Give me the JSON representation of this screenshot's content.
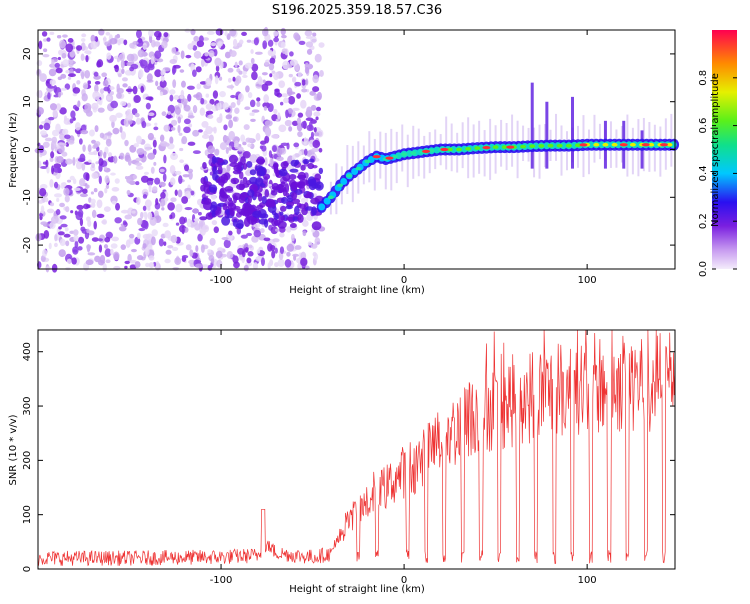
{
  "title": "S196.2025.359.18.57.C36",
  "chart_data": [
    {
      "type": "heatmap",
      "title": "S196.2025.359.18.57.C36",
      "xlabel": "Height of straight line (km)",
      "ylabel": "Frequency (Hz)",
      "xlim": [
        -200,
        148
      ],
      "ylim": [
        -25,
        25
      ],
      "xticks": [
        -100,
        0,
        100
      ],
      "yticks": [
        -20,
        -10,
        0,
        10,
        20
      ],
      "colorbar": {
        "label": "Normalized spectral amplitude",
        "range": [
          0.0,
          1.0
        ],
        "ticks": [
          0.0,
          0.2,
          0.4,
          0.6,
          0.8
        ]
      },
      "ridge": {
        "description": "dominant frequency track",
        "x": [
          -45,
          -40,
          -35,
          -30,
          -25,
          -20,
          -15,
          -10,
          -5,
          0,
          10,
          20,
          30,
          40,
          50,
          60,
          70,
          80,
          90,
          100,
          110,
          120,
          130,
          140,
          148
        ],
        "y": [
          -12,
          -10,
          -7.5,
          -5.5,
          -4,
          -2.5,
          -1.5,
          -2,
          -1.5,
          -1,
          -0.5,
          0,
          0,
          0.3,
          0.5,
          0.5,
          0.7,
          0.8,
          0.8,
          1,
          1,
          1,
          1,
          1,
          1
        ]
      },
      "noise_region_x": [
        -200,
        -45
      ]
    },
    {
      "type": "line",
      "xlabel": "Height of straight line (km)",
      "ylabel": "SNR (10 * v/v)",
      "xlim": [
        -200,
        148
      ],
      "ylim": [
        0,
        440
      ],
      "xticks": [
        -100,
        0,
        100
      ],
      "yticks": [
        0,
        100,
        200,
        300,
        400
      ],
      "series": [
        {
          "name": "SNR",
          "color": "#ee3333",
          "x": [
            -200,
            -150,
            -100,
            -80,
            -75,
            -70,
            -60,
            -50,
            -40,
            -35,
            -30,
            -25,
            -20,
            -15,
            -10,
            -5,
            0,
            10,
            20,
            30,
            40,
            50,
            60,
            70,
            80,
            90,
            100,
            110,
            120,
            130,
            140,
            148
          ],
          "y": [
            20,
            20,
            22,
            25,
            45,
            30,
            25,
            22,
            28,
            60,
            90,
            110,
            120,
            140,
            150,
            165,
            180,
            200,
            240,
            260,
            290,
            300,
            310,
            320,
            325,
            330,
            340,
            340,
            345,
            345,
            350,
            360
          ]
        }
      ],
      "dropouts_x": [
        -25,
        -15,
        2,
        12,
        22,
        32,
        42,
        52,
        62,
        72,
        82,
        92,
        102,
        112,
        122,
        132,
        142
      ]
    }
  ]
}
